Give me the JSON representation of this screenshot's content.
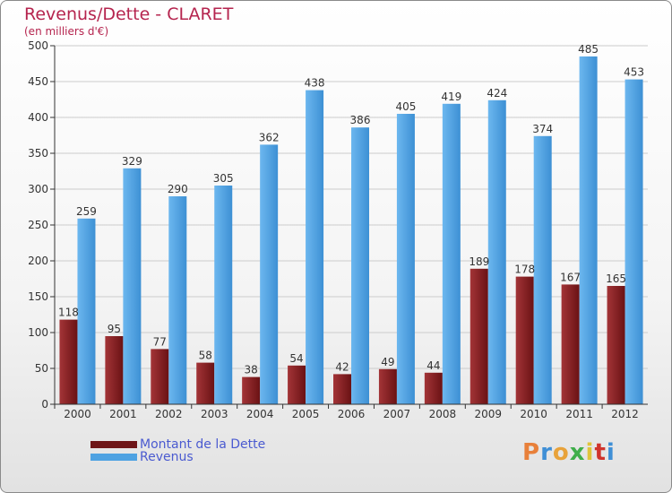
{
  "header": {
    "title": "Revenus/Dette - CLARET",
    "subtitle": "(en milliers d'€)"
  },
  "legend": [
    {
      "label": "Montant de la Dette",
      "color": "#7a1a1c"
    },
    {
      "label": "Revenus",
      "color": "#4ea2e2"
    }
  ],
  "logo": {
    "text": "Proxiti",
    "colors": [
      "#e8803a",
      "#3f8fd6",
      "#e8a23a",
      "#3fae4a",
      "#e0c43a",
      "#d0342c",
      "#3f8fd6"
    ]
  },
  "colors": {
    "dette": "#7a1a1c",
    "dette_light": "#a4383b",
    "revenus": "#4ea2e2",
    "revenus_light": "#6fb8ee",
    "axis": "#333333",
    "grid": "#cccccc"
  },
  "chart_data": {
    "type": "bar",
    "categories": [
      "2000",
      "2001",
      "2002",
      "2003",
      "2004",
      "2005",
      "2006",
      "2007",
      "2008",
      "2009",
      "2010",
      "2011",
      "2012"
    ],
    "series": [
      {
        "name": "Montant de la Dette",
        "values": [
          118,
          95,
          77,
          58,
          38,
          54,
          42,
          49,
          44,
          189,
          178,
          167,
          165
        ]
      },
      {
        "name": "Revenus",
        "values": [
          259,
          329,
          290,
          305,
          362,
          438,
          386,
          405,
          419,
          424,
          374,
          485,
          453
        ]
      }
    ],
    "yticks": [
      0,
      50,
      100,
      150,
      200,
      250,
      300,
      350,
      400,
      450,
      500
    ],
    "ylim": [
      0,
      500
    ],
    "grid": true
  }
}
